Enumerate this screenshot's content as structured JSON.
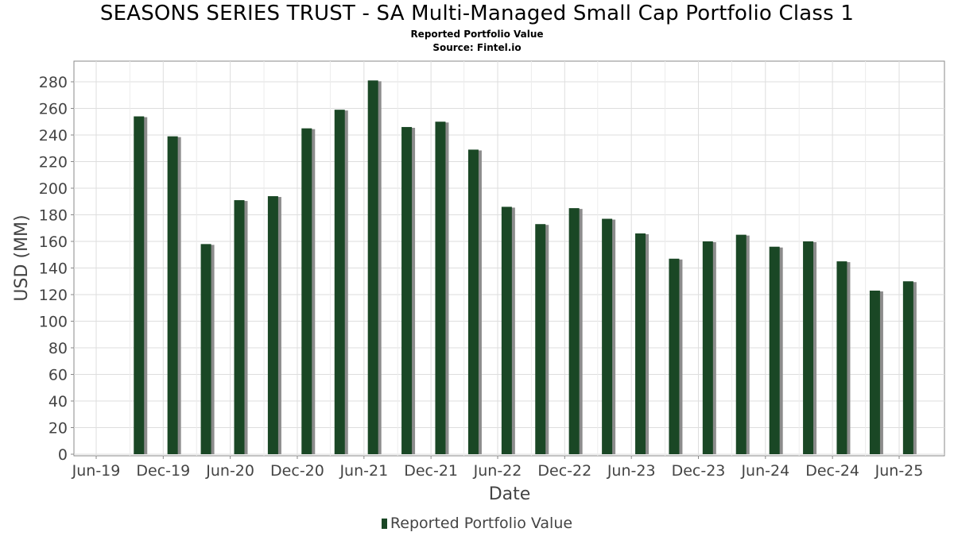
{
  "chart_data": {
    "type": "bar",
    "title": "SEASONS SERIES TRUST - SA Multi-Managed Small Cap Portfolio Class 1",
    "subtitle": "Reported Portfolio Value",
    "source": "Source: Fintel.io",
    "xlabel": "Date",
    "ylabel": "USD (MM)",
    "ylim": [
      0,
      290
    ],
    "yticks": [
      0,
      20,
      40,
      60,
      80,
      100,
      120,
      140,
      160,
      180,
      200,
      220,
      240,
      260,
      280
    ],
    "xticks": [
      "Jun-19",
      "Dec-19",
      "Jun-20",
      "Dec-20",
      "Jun-21",
      "Dec-21",
      "Jun-22",
      "Dec-22",
      "Jun-23",
      "Dec-23",
      "Jun-24",
      "Dec-24",
      "Jun-25"
    ],
    "grid": true,
    "legend_position": "bottom",
    "bar_color": "#1a4725",
    "series": [
      {
        "name": "Reported Portfolio Value",
        "x": [
          "2019-09-30",
          "2019-12-31",
          "2020-03-31",
          "2020-06-30",
          "2020-09-30",
          "2020-12-31",
          "2021-03-31",
          "2021-06-30",
          "2021-09-30",
          "2021-12-31",
          "2022-03-31",
          "2022-06-30",
          "2022-09-30",
          "2022-12-31",
          "2023-03-31",
          "2023-06-30",
          "2023-09-30",
          "2023-12-31",
          "2024-03-31",
          "2024-06-30",
          "2024-09-30",
          "2024-12-31",
          "2025-03-31",
          "2025-06-30"
        ],
        "values": [
          254,
          239,
          158,
          191,
          194,
          245,
          259,
          281,
          246,
          250,
          229,
          186,
          173,
          185,
          177,
          166,
          147,
          160,
          165,
          156,
          160,
          145,
          123,
          130
        ]
      }
    ]
  }
}
